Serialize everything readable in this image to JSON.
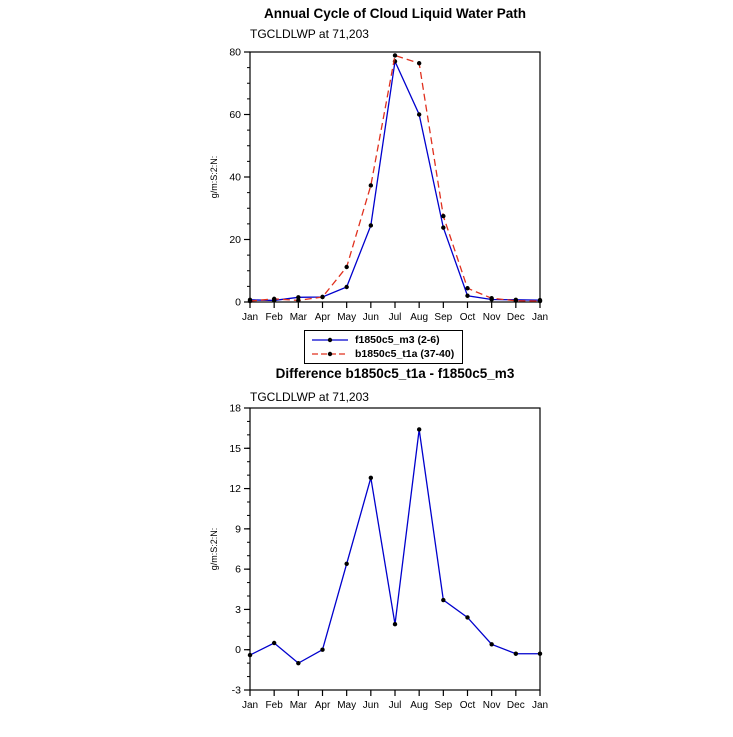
{
  "page": {
    "background": "#ffffff"
  },
  "chart_data": [
    {
      "type": "line",
      "title": "Annual Cycle of Cloud Liquid Water Path",
      "subtitle": "TGCLDLWP at 71,203",
      "ylabel": "g/m:S:2:N:",
      "xlabel": "",
      "categories": [
        "Jan",
        "Feb",
        "Mar",
        "Apr",
        "May",
        "Jun",
        "Jul",
        "Aug",
        "Sep",
        "Oct",
        "Nov",
        "Dec",
        "Jan"
      ],
      "ylim": [
        0,
        80
      ],
      "ytick_step": 20,
      "yminor_step": 5,
      "grid": false,
      "marker_color": "#000000",
      "series": [
        {
          "name": "f1850c5_m3 (2-6)",
          "color": "#0000cd",
          "dash": "solid",
          "values": [
            0.7,
            0.5,
            1.5,
            1.6,
            4.8,
            24.5,
            77.0,
            60.0,
            23.8,
            2.0,
            0.8,
            0.7,
            0.6
          ]
        },
        {
          "name": "b1850c5_t1a (37-40)",
          "color": "#e0301e",
          "dash": "dashed",
          "values": [
            0.3,
            1.0,
            0.5,
            1.6,
            11.2,
            37.3,
            78.9,
            76.4,
            27.5,
            4.4,
            1.2,
            0.4,
            0.3
          ]
        }
      ]
    },
    {
      "type": "line",
      "title": "Difference b1850c5_t1a - f1850c5_m3",
      "subtitle": "TGCLDLWP at 71,203",
      "ylabel": "g/m:S:2:N:",
      "xlabel": "",
      "categories": [
        "Jan",
        "Feb",
        "Mar",
        "Apr",
        "May",
        "Jun",
        "Jul",
        "Aug",
        "Sep",
        "Oct",
        "Nov",
        "Dec",
        "Jan"
      ],
      "ylim": [
        -3,
        18
      ],
      "ytick_step": 3,
      "yminor_step": 1,
      "grid": false,
      "marker_color": "#000000",
      "series": [
        {
          "name": "difference",
          "color": "#0000cd",
          "dash": "solid",
          "values": [
            -0.4,
            0.5,
            -1.0,
            0.0,
            6.4,
            12.8,
            1.9,
            16.4,
            3.7,
            2.4,
            0.4,
            -0.3,
            -0.3
          ]
        }
      ]
    }
  ],
  "legend": {
    "position": "below-top-chart",
    "entries": [
      {
        "label": "f1850c5_m3 (2-6)"
      },
      {
        "label": "b1850c5_t1a (37-40)"
      }
    ]
  }
}
